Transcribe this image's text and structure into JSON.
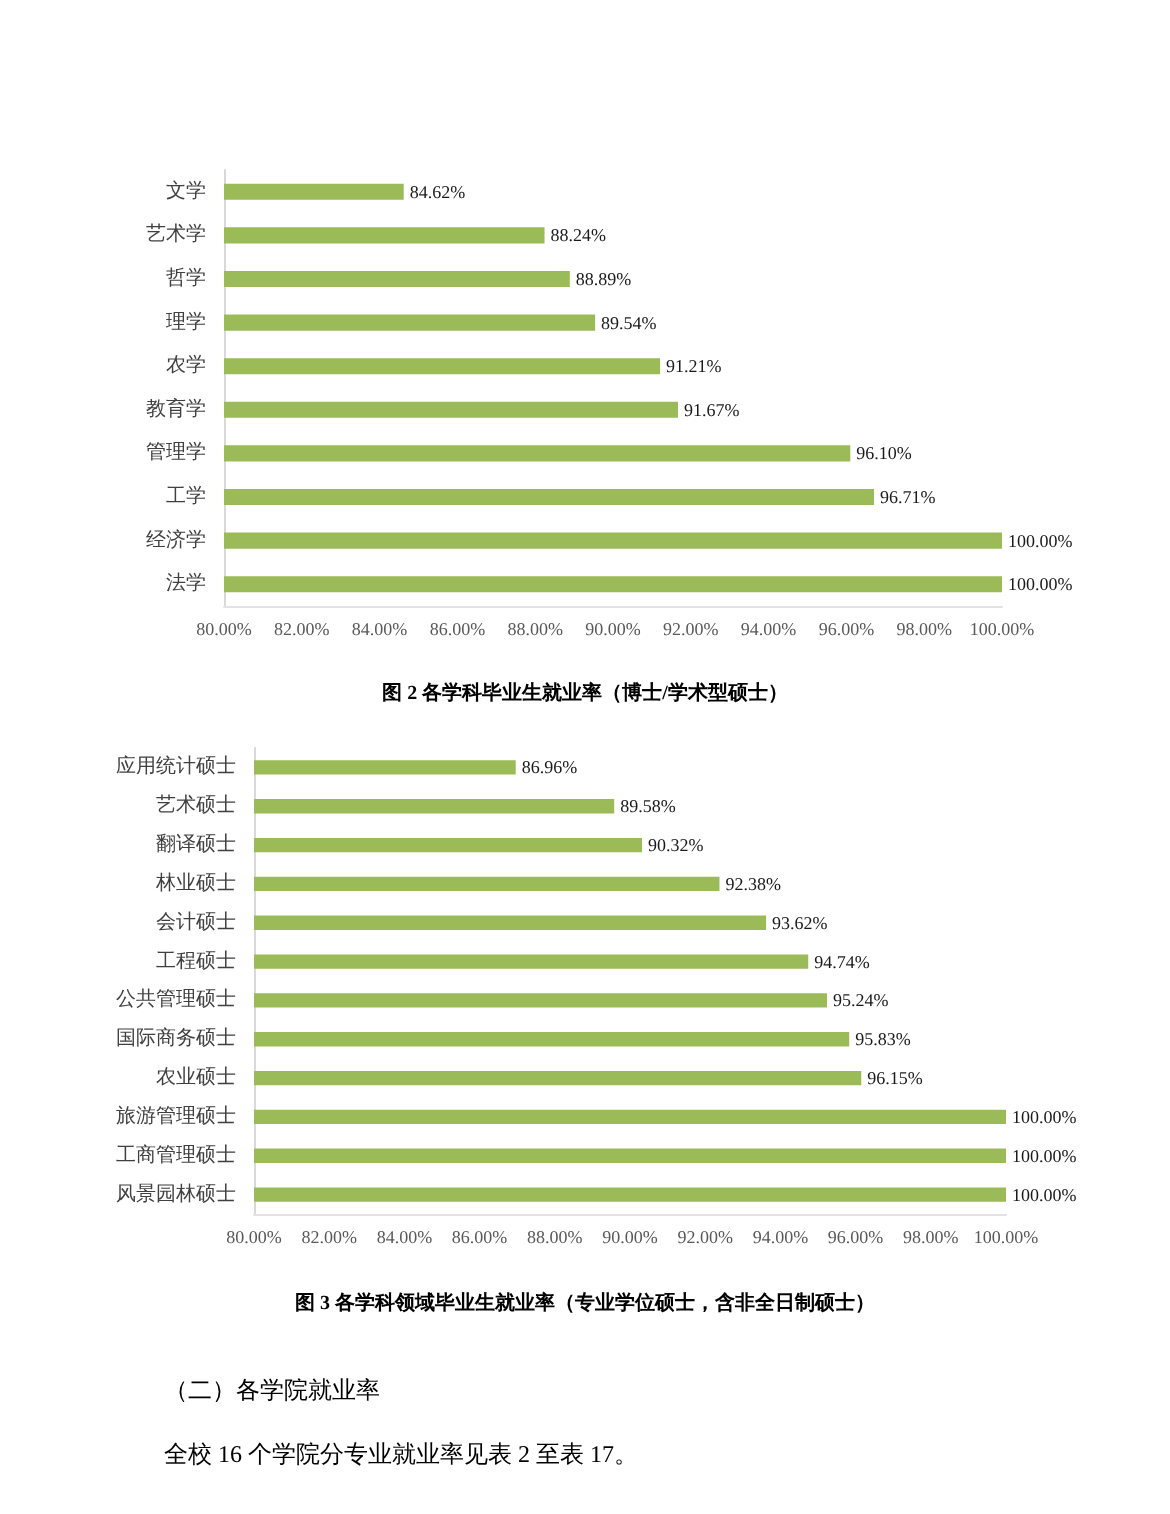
{
  "chart_data": [
    {
      "type": "bar",
      "orientation": "horizontal",
      "title": "图 2 各学科毕业生就业率（博士/学术型硕士）",
      "categories": [
        "文学",
        "艺术学",
        "哲学",
        "理学",
        "农学",
        "教育学",
        "管理学",
        "工学",
        "经济学",
        "法学"
      ],
      "values": [
        84.62,
        88.24,
        88.89,
        89.54,
        91.21,
        91.67,
        96.1,
        96.71,
        100.0,
        100.0
      ],
      "value_labels": [
        "84.62%",
        "88.24%",
        "88.89%",
        "89.54%",
        "91.21%",
        "91.67%",
        "96.10%",
        "96.71%",
        "100.00%",
        "100.00%"
      ],
      "color": "#9bbb59",
      "xlim": [
        80,
        100
      ],
      "xticks": [
        {
          "value": 80,
          "label": "80.00%"
        },
        {
          "value": 82,
          "label": "82.00%"
        },
        {
          "value": 84,
          "label": "84.00%"
        },
        {
          "value": 86,
          "label": "86.00%"
        },
        {
          "value": 88,
          "label": "88.00%"
        },
        {
          "value": 90,
          "label": "90.00%"
        },
        {
          "value": 92,
          "label": "92.00%"
        },
        {
          "value": 94,
          "label": "94.00%"
        },
        {
          "value": 96,
          "label": "96.00%"
        },
        {
          "value": 98,
          "label": "98.00%"
        },
        {
          "value": 100,
          "label": "100.00%"
        }
      ]
    },
    {
      "type": "bar",
      "orientation": "horizontal",
      "title": "图 3 各学科领域毕业生就业率（专业学位硕士，含非全日制硕士）",
      "categories": [
        "应用统计硕士",
        "艺术硕士",
        "翻译硕士",
        "林业硕士",
        "会计硕士",
        "工程硕士",
        "公共管理硕士",
        "国际商务硕士",
        "农业硕士",
        "旅游管理硕士",
        "工商管理硕士",
        "风景园林硕士"
      ],
      "values": [
        86.96,
        89.58,
        90.32,
        92.38,
        93.62,
        94.74,
        95.24,
        95.83,
        96.15,
        100.0,
        100.0,
        100.0
      ],
      "value_labels": [
        "86.96%",
        "89.58%",
        "90.32%",
        "92.38%",
        "93.62%",
        "94.74%",
        "95.24%",
        "95.83%",
        "96.15%",
        "100.00%",
        "100.00%",
        "100.00%"
      ],
      "color": "#9bbb59",
      "xlim": [
        80,
        100
      ],
      "xticks": [
        {
          "value": 80,
          "label": "80.00%"
        },
        {
          "value": 82,
          "label": "82.00%"
        },
        {
          "value": 84,
          "label": "84.00%"
        },
        {
          "value": 86,
          "label": "86.00%"
        },
        {
          "value": 88,
          "label": "88.00%"
        },
        {
          "value": 90,
          "label": "90.00%"
        },
        {
          "value": 92,
          "label": "92.00%"
        },
        {
          "value": 94,
          "label": "94.00%"
        },
        {
          "value": 96,
          "label": "96.00%"
        },
        {
          "value": 98,
          "label": "98.00%"
        },
        {
          "value": 100,
          "label": "100.00%"
        }
      ],
      "annotations": [
        "（二）各学院就业率",
        "全校 16 个学院分专业就业率见表 2 至表 17。"
      ]
    }
  ]
}
